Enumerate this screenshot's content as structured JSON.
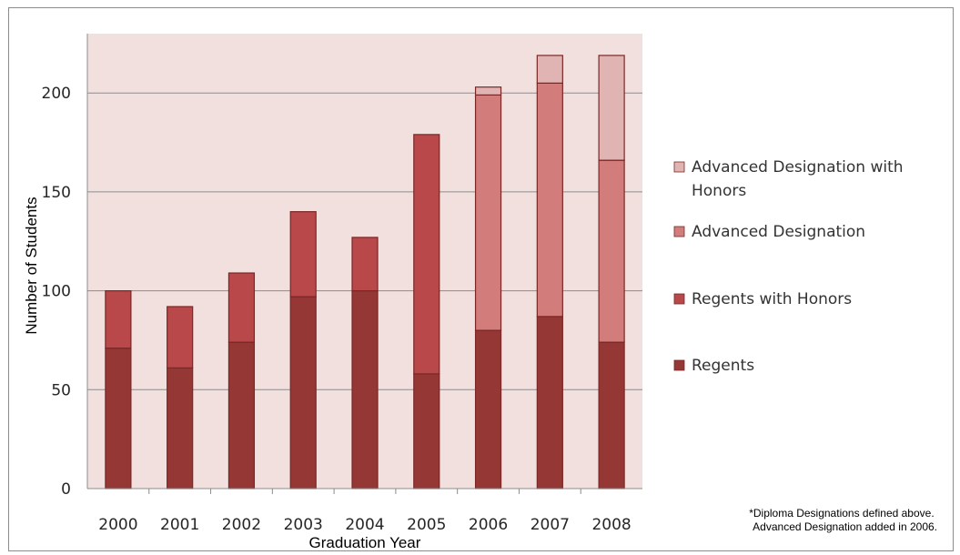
{
  "chart_data": {
    "type": "bar",
    "stacked": true,
    "categories": [
      "2000",
      "2001",
      "2002",
      "2003",
      "2004",
      "2005",
      "2006",
      "2007",
      "2008"
    ],
    "series": [
      {
        "name": "Regents",
        "color": "#953735",
        "values": [
          71,
          61,
          74,
          97,
          100,
          58,
          80,
          87,
          74
        ]
      },
      {
        "name": "Regents with Honors",
        "color": "#b9484a",
        "values": [
          29,
          31,
          35,
          43,
          27,
          121,
          0,
          0,
          0
        ]
      },
      {
        "name": "Advanced Designation",
        "color": "#d27d7c",
        "values": [
          0,
          0,
          0,
          0,
          0,
          0,
          119,
          118,
          92
        ]
      },
      {
        "name": "Advanced Designation with Honors",
        "color": "#e1b4b4",
        "values": [
          0,
          0,
          0,
          0,
          0,
          0,
          4,
          14,
          53
        ]
      }
    ],
    "legend_order": [
      "Advanced Designation with Honors",
      "Advanced Designation",
      "Regents with Honors",
      "Regents"
    ],
    "legend_position": "right",
    "xlabel": "Graduation Year",
    "ylabel": "Number of Students",
    "ylim": [
      0,
      230
    ],
    "yticks": [
      0,
      50,
      100,
      150,
      200
    ],
    "grid": true,
    "plot_background": "#f2e0df",
    "bar_border_color": "#7a2725",
    "footnote": [
      "*Diploma Designations defined above.",
      "Advanced Designation added in 2006."
    ]
  }
}
